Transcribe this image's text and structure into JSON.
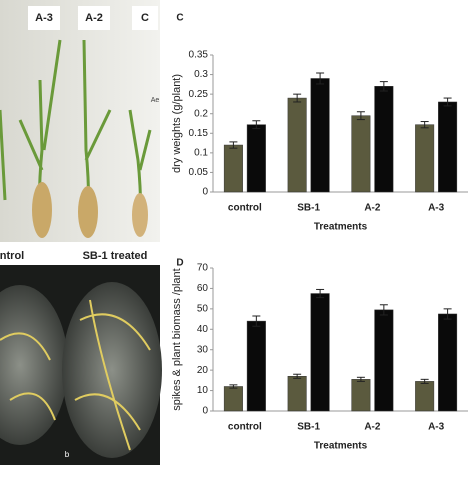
{
  "chart_data": [
    {
      "type": "bar",
      "panel": "C",
      "ylabel": "dry weights (g/plant)",
      "xlabel": "Treatments",
      "categories": [
        "control",
        "SB-1",
        "A-2",
        "A-3"
      ],
      "series": [
        {
          "color": "#5b5a3e",
          "values": [
            0.12,
            0.24,
            0.195,
            0.172
          ],
          "errors": [
            0.008,
            0.01,
            0.01,
            0.008
          ]
        },
        {
          "color": "#0a0a0a",
          "values": [
            0.172,
            0.29,
            0.27,
            0.23
          ],
          "errors": [
            0.01,
            0.014,
            0.012,
            0.01
          ]
        }
      ],
      "ylim": [
        0,
        0.35
      ],
      "yticks": [
        0,
        0.05,
        0.1,
        0.15,
        0.2,
        0.25,
        0.3,
        0.35
      ],
      "grid": false
    },
    {
      "type": "bar",
      "panel": "D",
      "ylabel": "spikes & plant biomass /plant",
      "xlabel": "Treatments",
      "categories": [
        "control",
        "SB-1",
        "A-2",
        "A-3"
      ],
      "series": [
        {
          "color": "#5b5a3e",
          "values": [
            12,
            17,
            15.5,
            14.5
          ],
          "errors": [
            0.8,
            1,
            1,
            1
          ]
        },
        {
          "color": "#0a0a0a",
          "values": [
            44,
            57.5,
            49.5,
            47.5
          ],
          "errors": [
            2.5,
            2,
            2.5,
            2.5
          ]
        }
      ],
      "ylim": [
        0,
        70
      ],
      "yticks": [
        0,
        10,
        20,
        30,
        40,
        50,
        60,
        70
      ],
      "grid": false
    }
  ],
  "photo_labels": [
    "A-3",
    "A-2",
    "C",
    "Ae",
    "ntrol",
    "SB-1 treated",
    "b"
  ]
}
